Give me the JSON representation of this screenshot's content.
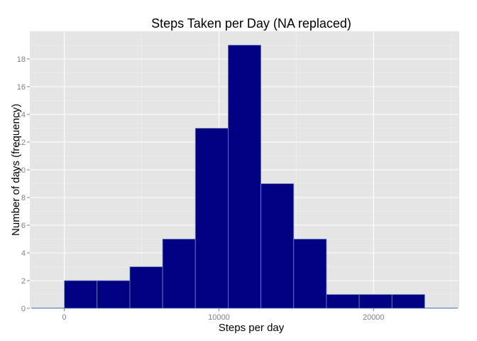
{
  "chart_data": {
    "type": "bar",
    "title": "Steps Taken per Day (NA replaced)",
    "xlabel": "Steps per day",
    "ylabel": "Number of days (frequency)",
    "bin_width": 2119.3,
    "bins": [
      {
        "start": -2119.3,
        "end": 0,
        "count": 0
      },
      {
        "start": 0,
        "end": 2119.3,
        "count": 2
      },
      {
        "start": 2119.3,
        "end": 4238.6,
        "count": 2
      },
      {
        "start": 4238.6,
        "end": 6357.9,
        "count": 3
      },
      {
        "start": 6357.9,
        "end": 8477.2,
        "count": 5
      },
      {
        "start": 8477.2,
        "end": 10596.5,
        "count": 13
      },
      {
        "start": 10596.5,
        "end": 12715.8,
        "count": 19
      },
      {
        "start": 12715.8,
        "end": 14835.1,
        "count": 9
      },
      {
        "start": 14835.1,
        "end": 16954.4,
        "count": 5
      },
      {
        "start": 16954.4,
        "end": 19073.7,
        "count": 1
      },
      {
        "start": 19073.7,
        "end": 21193.0,
        "count": 1
      },
      {
        "start": 21193.0,
        "end": 23312.3,
        "count": 1
      },
      {
        "start": 23312.3,
        "end": 25431.6,
        "count": 0
      }
    ],
    "xlim": [
      -2231,
      25543
    ],
    "ylim": [
      0,
      20
    ],
    "x_ticks": [
      0,
      10000,
      20000
    ],
    "x_tick_labels": [
      "0",
      "10000",
      "20000"
    ],
    "y_ticks": [
      0,
      2,
      4,
      6,
      8,
      10,
      12,
      14,
      16,
      18
    ],
    "y_tick_labels": [
      "0",
      "2",
      "4",
      "6",
      "8",
      "10",
      "12",
      "14",
      "16",
      "18"
    ],
    "grid": true,
    "legend": "none",
    "colors": {
      "panel_background": "#e5e5e5",
      "grid_major": "#ffffff",
      "grid_minor": "#f2f2f2",
      "bar_fill": "#000080",
      "bar_outline": "#6a8fc0",
      "tick_color": "#7f7f7f"
    }
  }
}
